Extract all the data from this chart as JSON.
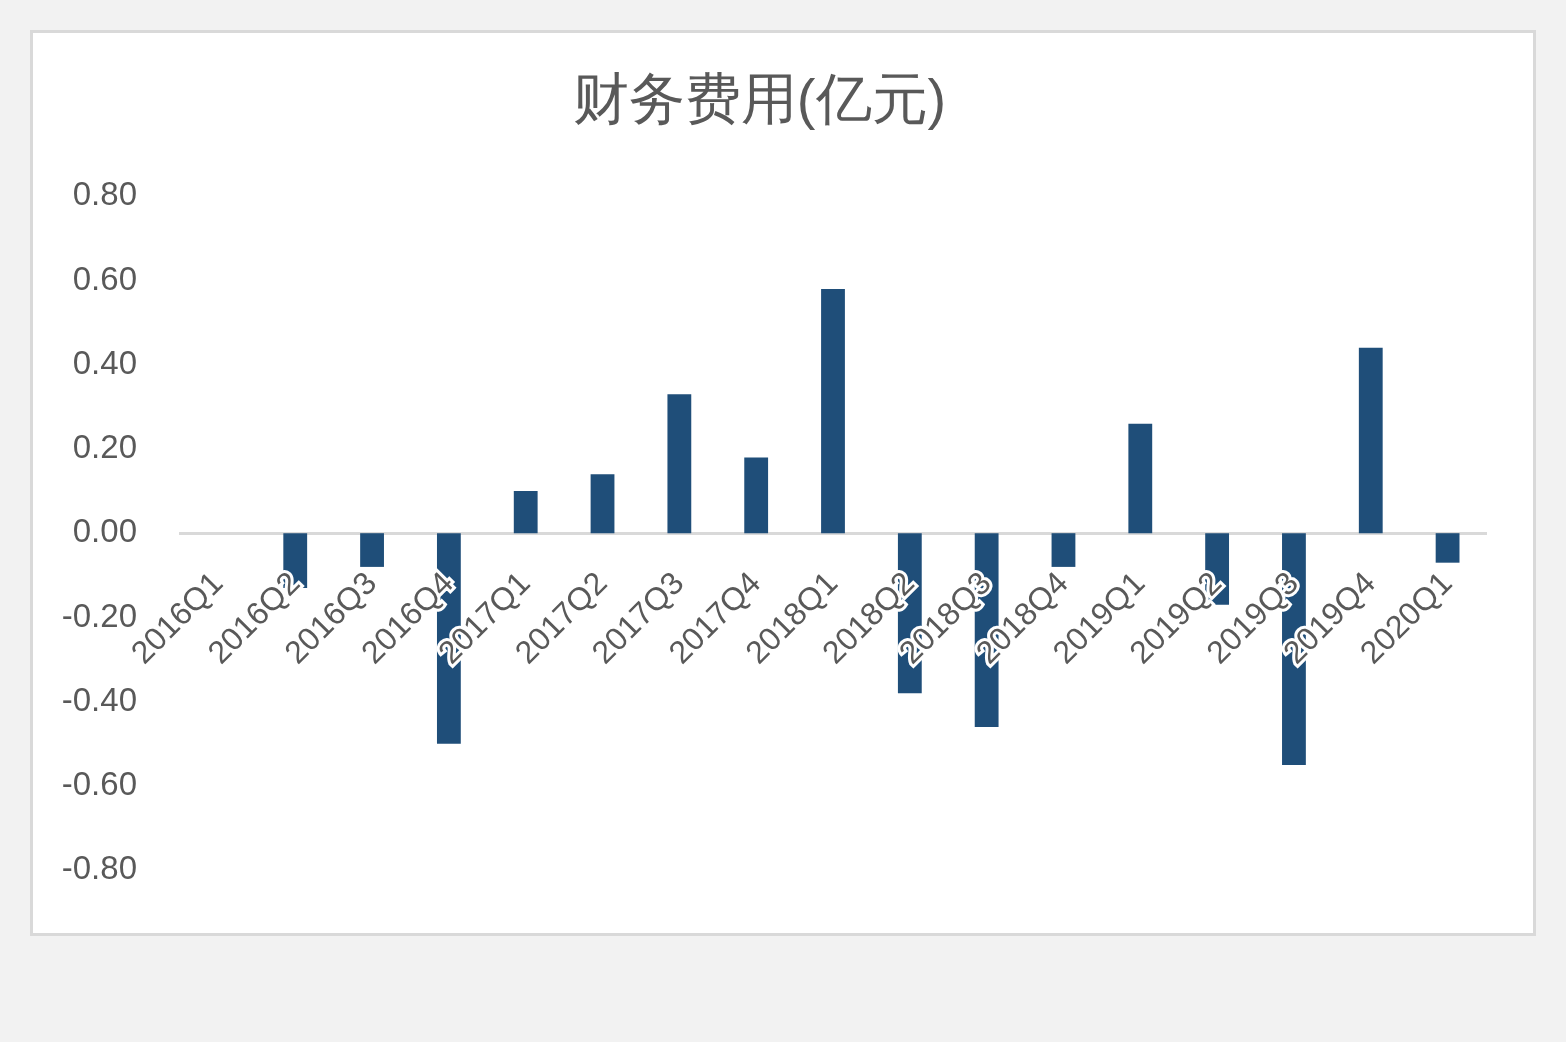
{
  "chart_data": {
    "type": "bar",
    "title": "财务费用(亿元)",
    "categories": [
      "2016Q1",
      "2016Q2",
      "2016Q3",
      "2016Q4",
      "2017Q1",
      "2017Q2",
      "2017Q3",
      "2017Q4",
      "2018Q1",
      "2018Q2",
      "2018Q3",
      "2018Q4",
      "2019Q1",
      "2019Q2",
      "2019Q3",
      "2019Q4",
      "2020Q1"
    ],
    "values": [
      0,
      -0.13,
      -0.08,
      -0.5,
      0.1,
      0.14,
      0.33,
      0.18,
      0.58,
      -0.38,
      -0.46,
      -0.08,
      0.26,
      -0.17,
      -0.55,
      0.44,
      -0.07
    ],
    "color": "#1f4e79",
    "ylim": [
      -0.8,
      0.8
    ],
    "yticks": [
      {
        "value": -0.8,
        "label": "-0.80"
      },
      {
        "value": -0.6,
        "label": "-0.60"
      },
      {
        "value": -0.4,
        "label": "-0.40"
      },
      {
        "value": -0.2,
        "label": "-0.20"
      },
      {
        "value": 0,
        "label": "0.00"
      },
      {
        "value": 0.2,
        "label": "0.20"
      },
      {
        "value": 0.4,
        "label": "0.40"
      },
      {
        "value": 0.6,
        "label": "0.60"
      },
      {
        "value": 0.8,
        "label": "0.80"
      }
    ],
    "grid": false
  }
}
